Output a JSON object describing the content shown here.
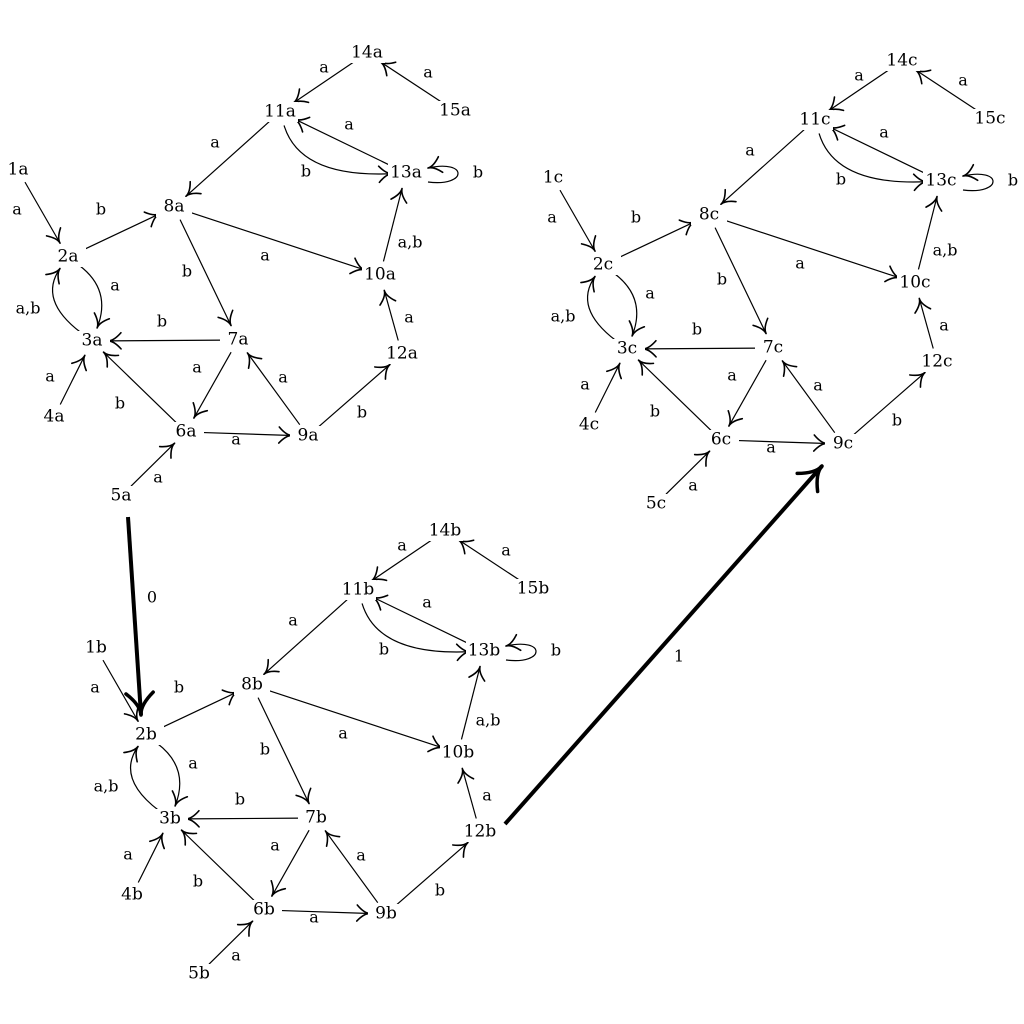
{
  "graphs": [
    {
      "id": "a",
      "nodes": [
        "1a",
        "2a",
        "3a",
        "4a",
        "5a",
        "6a",
        "7a",
        "8a",
        "9a",
        "10a",
        "11a",
        "12a",
        "13a",
        "14a",
        "15a"
      ],
      "edges": [
        {
          "from": "1a",
          "to": "2a",
          "label": "a"
        },
        {
          "from": "2a",
          "to": "8a",
          "label": "b"
        },
        {
          "from": "2a",
          "to": "3a",
          "label": "a"
        },
        {
          "from": "3a",
          "to": "2a",
          "label": "a,b"
        },
        {
          "from": "4a",
          "to": "3a",
          "label": "a"
        },
        {
          "from": "5a",
          "to": "6a",
          "label": "a"
        },
        {
          "from": "6a",
          "to": "3a",
          "label": "b"
        },
        {
          "from": "6a",
          "to": "9a",
          "label": "a"
        },
        {
          "from": "7a",
          "to": "3a",
          "label": "b"
        },
        {
          "from": "7a",
          "to": "6a",
          "label": "a"
        },
        {
          "from": "8a",
          "to": "7a",
          "label": "b"
        },
        {
          "from": "8a",
          "to": "10a",
          "label": "a"
        },
        {
          "from": "9a",
          "to": "7a",
          "label": "a"
        },
        {
          "from": "9a",
          "to": "12a",
          "label": "b"
        },
        {
          "from": "10a",
          "to": "13a",
          "label": "a,b"
        },
        {
          "from": "11a",
          "to": "8a",
          "label": "a"
        },
        {
          "from": "11a",
          "to": "13a",
          "label": "b"
        },
        {
          "from": "12a",
          "to": "10a",
          "label": "a"
        },
        {
          "from": "13a",
          "to": "11a",
          "label": "a"
        },
        {
          "from": "13a",
          "to": "13a",
          "label": "b"
        },
        {
          "from": "14a",
          "to": "11a",
          "label": "a"
        },
        {
          "from": "15a",
          "to": "14a",
          "label": "a"
        }
      ]
    },
    {
      "id": "b",
      "nodes": [
        "1b",
        "2b",
        "3b",
        "4b",
        "5b",
        "6b",
        "7b",
        "8b",
        "9b",
        "10b",
        "11b",
        "12b",
        "13b",
        "14b",
        "15b"
      ],
      "edges": [
        {
          "from": "1b",
          "to": "2b",
          "label": "a"
        },
        {
          "from": "2b",
          "to": "8b",
          "label": "b"
        },
        {
          "from": "2b",
          "to": "3b",
          "label": "a"
        },
        {
          "from": "3b",
          "to": "2b",
          "label": "a,b"
        },
        {
          "from": "4b",
          "to": "3b",
          "label": "a"
        },
        {
          "from": "5b",
          "to": "6b",
          "label": "a"
        },
        {
          "from": "6b",
          "to": "3b",
          "label": "b"
        },
        {
          "from": "6b",
          "to": "9b",
          "label": "a"
        },
        {
          "from": "7b",
          "to": "3b",
          "label": "b"
        },
        {
          "from": "7b",
          "to": "6b",
          "label": "a"
        },
        {
          "from": "8b",
          "to": "7b",
          "label": "b"
        },
        {
          "from": "8b",
          "to": "10b",
          "label": "a"
        },
        {
          "from": "9b",
          "to": "7b",
          "label": "a"
        },
        {
          "from": "9b",
          "to": "12b",
          "label": "b"
        },
        {
          "from": "10b",
          "to": "13b",
          "label": "a,b"
        },
        {
          "from": "11b",
          "to": "8b",
          "label": "a"
        },
        {
          "from": "11b",
          "to": "13b",
          "label": "b"
        },
        {
          "from": "12b",
          "to": "10b",
          "label": "a"
        },
        {
          "from": "13b",
          "to": "11b",
          "label": "a"
        },
        {
          "from": "13b",
          "to": "13b",
          "label": "b"
        },
        {
          "from": "14b",
          "to": "11b",
          "label": "a"
        },
        {
          "from": "15b",
          "to": "14b",
          "label": "a"
        }
      ]
    },
    {
      "id": "c",
      "nodes": [
        "1c",
        "2c",
        "3c",
        "4c",
        "5c",
        "6c",
        "7c",
        "8c",
        "9c",
        "10c",
        "11c",
        "12c",
        "13c",
        "14c",
        "15c"
      ],
      "edges": [
        {
          "from": "1c",
          "to": "2c",
          "label": "a"
        },
        {
          "from": "2c",
          "to": "8c",
          "label": "b"
        },
        {
          "from": "2c",
          "to": "3c",
          "label": "a"
        },
        {
          "from": "3c",
          "to": "2c",
          "label": "a,b"
        },
        {
          "from": "4c",
          "to": "3c",
          "label": "a"
        },
        {
          "from": "5c",
          "to": "6c",
          "label": "a"
        },
        {
          "from": "6c",
          "to": "3c",
          "label": "b"
        },
        {
          "from": "6c",
          "to": "9c",
          "label": "a"
        },
        {
          "from": "7c",
          "to": "3c",
          "label": "b"
        },
        {
          "from": "7c",
          "to": "6c",
          "label": "a"
        },
        {
          "from": "8c",
          "to": "7c",
          "label": "b"
        },
        {
          "from": "8c",
          "to": "10c",
          "label": "a"
        },
        {
          "from": "9c",
          "to": "7c",
          "label": "a"
        },
        {
          "from": "9c",
          "to": "12c",
          "label": "b"
        },
        {
          "from": "10c",
          "to": "13c",
          "label": "a,b"
        },
        {
          "from": "11c",
          "to": "8c",
          "label": "a"
        },
        {
          "from": "11c",
          "to": "13c",
          "label": "b"
        },
        {
          "from": "12c",
          "to": "10c",
          "label": "a"
        },
        {
          "from": "13c",
          "to": "11c",
          "label": "a"
        },
        {
          "from": "13c",
          "to": "13c",
          "label": "b"
        },
        {
          "from": "14c",
          "to": "11c",
          "label": "a"
        },
        {
          "from": "15c",
          "to": "14c",
          "label": "a"
        }
      ]
    }
  ],
  "connectors": [
    {
      "from": "5a",
      "to": "2b",
      "label": "0"
    },
    {
      "from": "12b",
      "to": "9c",
      "label": "1"
    }
  ]
}
